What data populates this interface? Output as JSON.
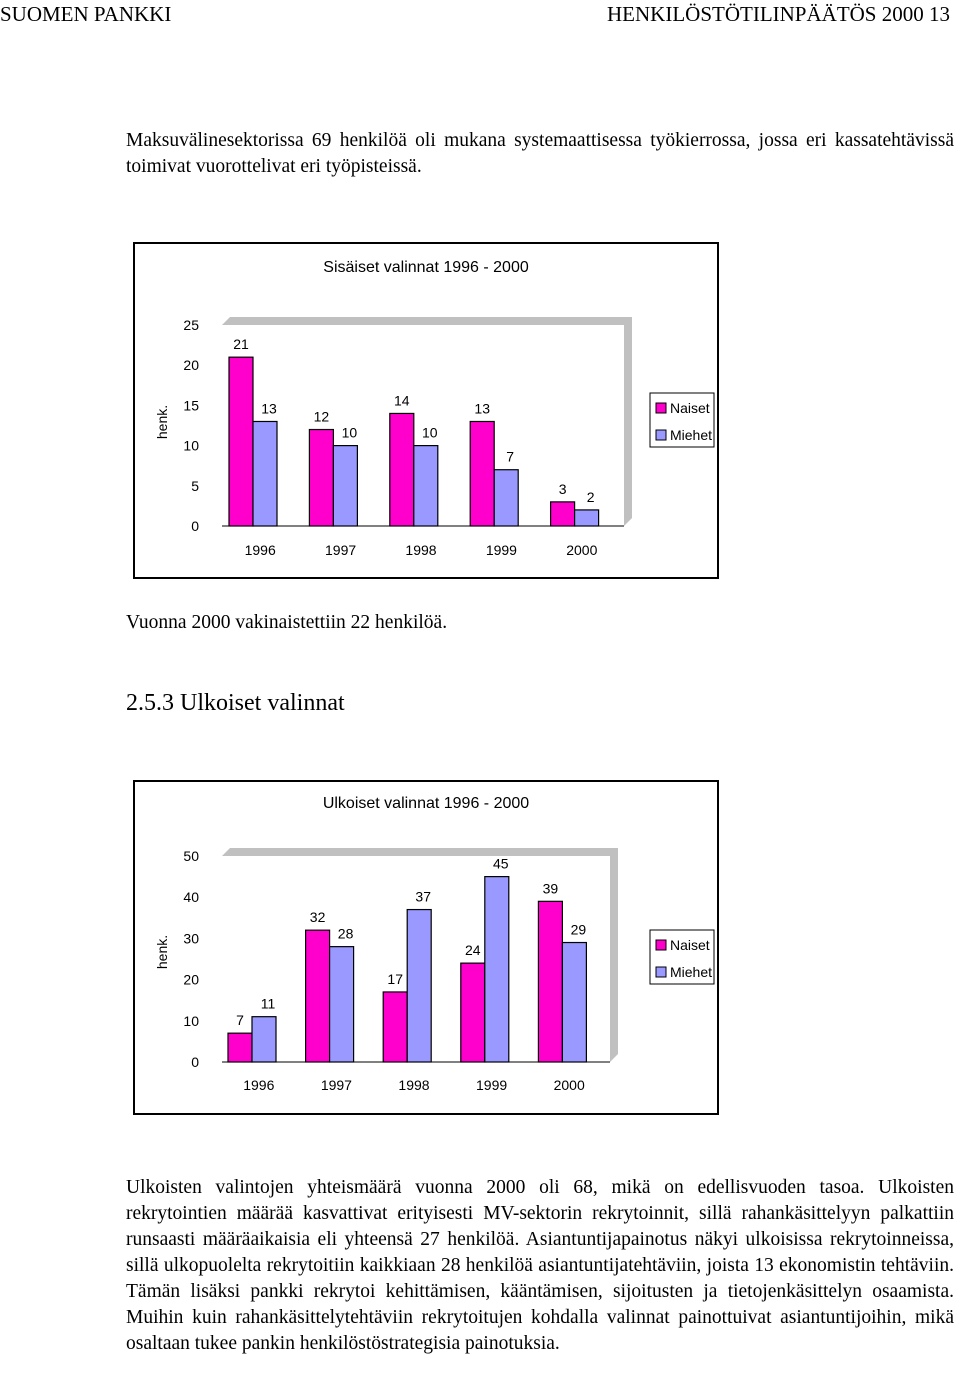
{
  "header": {
    "left": "SUOMEN PANKKI",
    "right": "HENKILÖSTÖTILINPÄÄTÖS 2000   13"
  },
  "paragraphs": {
    "p1": "Maksuvälinesektorissa 69 henkilöä oli mukana systemaattisessa työkierrossa, jossa eri kassatehtävissä toimivat vuorottelivat eri työpisteissä.",
    "p2": "Vuonna 2000 vakinaistettiin 22 henkilöä.",
    "p3": "Ulkoisten valintojen yhteismäärä vuonna 2000 oli 68, mikä on edellisvuoden tasoa. Ulkoisten rekrytointien määrää kasvattivat erityisesti MV-sektorin rekrytoinnit, sillä rahankäsittelyyn palkattiin runsaasti määräaikaisia eli yhteensä 27 henkilöä. Asiantuntijapainotus näkyi ulkoisissa rekrytoinneissa, sillä ulkopuolelta rekrytoitiin kaikkiaan 28 henkilöä asiantuntijatehtäviin, joista 13 ekonomistin tehtäviin. Tämän lisäksi pankki rekrytoi kehittämisen, kääntämisen, sijoitusten ja tietojenkäsittelyn osaamista. Muihin kuin rahankäsittelytehtäviin rekrytoitujen kohdalla valinnat painottuivat asiantuntijoihin, mikä osaltaan tukee pankin henkilöstöstrategisia painotuksia."
  },
  "section_heading": "2.5.3 Ulkoiset valinnat",
  "colors": {
    "naiset": "#ff00cc",
    "miehet": "#9999ff",
    "plot_bg": "#c0c0c0"
  },
  "chart_data": [
    {
      "type": "bar",
      "title": "Sisäiset valinnat 1996 - 2000",
      "categories": [
        "1996",
        "1997",
        "1998",
        "1999",
        "2000"
      ],
      "series": [
        {
          "name": "Naiset",
          "values": [
            21,
            12,
            14,
            13,
            3
          ]
        },
        {
          "name": "Miehet",
          "values": [
            13,
            10,
            10,
            7,
            2
          ]
        }
      ],
      "ylabel": "henk.",
      "ylim": [
        0,
        25
      ],
      "yticks": [
        "0",
        "5",
        "10",
        "15",
        "20",
        "25"
      ],
      "legend": "right",
      "grid": false
    },
    {
      "type": "bar",
      "title": "Ulkoiset valinnat 1996 - 2000",
      "categories": [
        "1996",
        "1997",
        "1998",
        "1999",
        "2000"
      ],
      "series": [
        {
          "name": "Naiset",
          "values": [
            7,
            32,
            17,
            24,
            39
          ]
        },
        {
          "name": "Miehet",
          "values": [
            11,
            28,
            37,
            45,
            29
          ]
        }
      ],
      "ylabel": "henk.",
      "ylim": [
        0,
        50
      ],
      "yticks": [
        "0",
        "10",
        "20",
        "30",
        "40",
        "50"
      ],
      "legend": "right",
      "grid": false
    }
  ]
}
